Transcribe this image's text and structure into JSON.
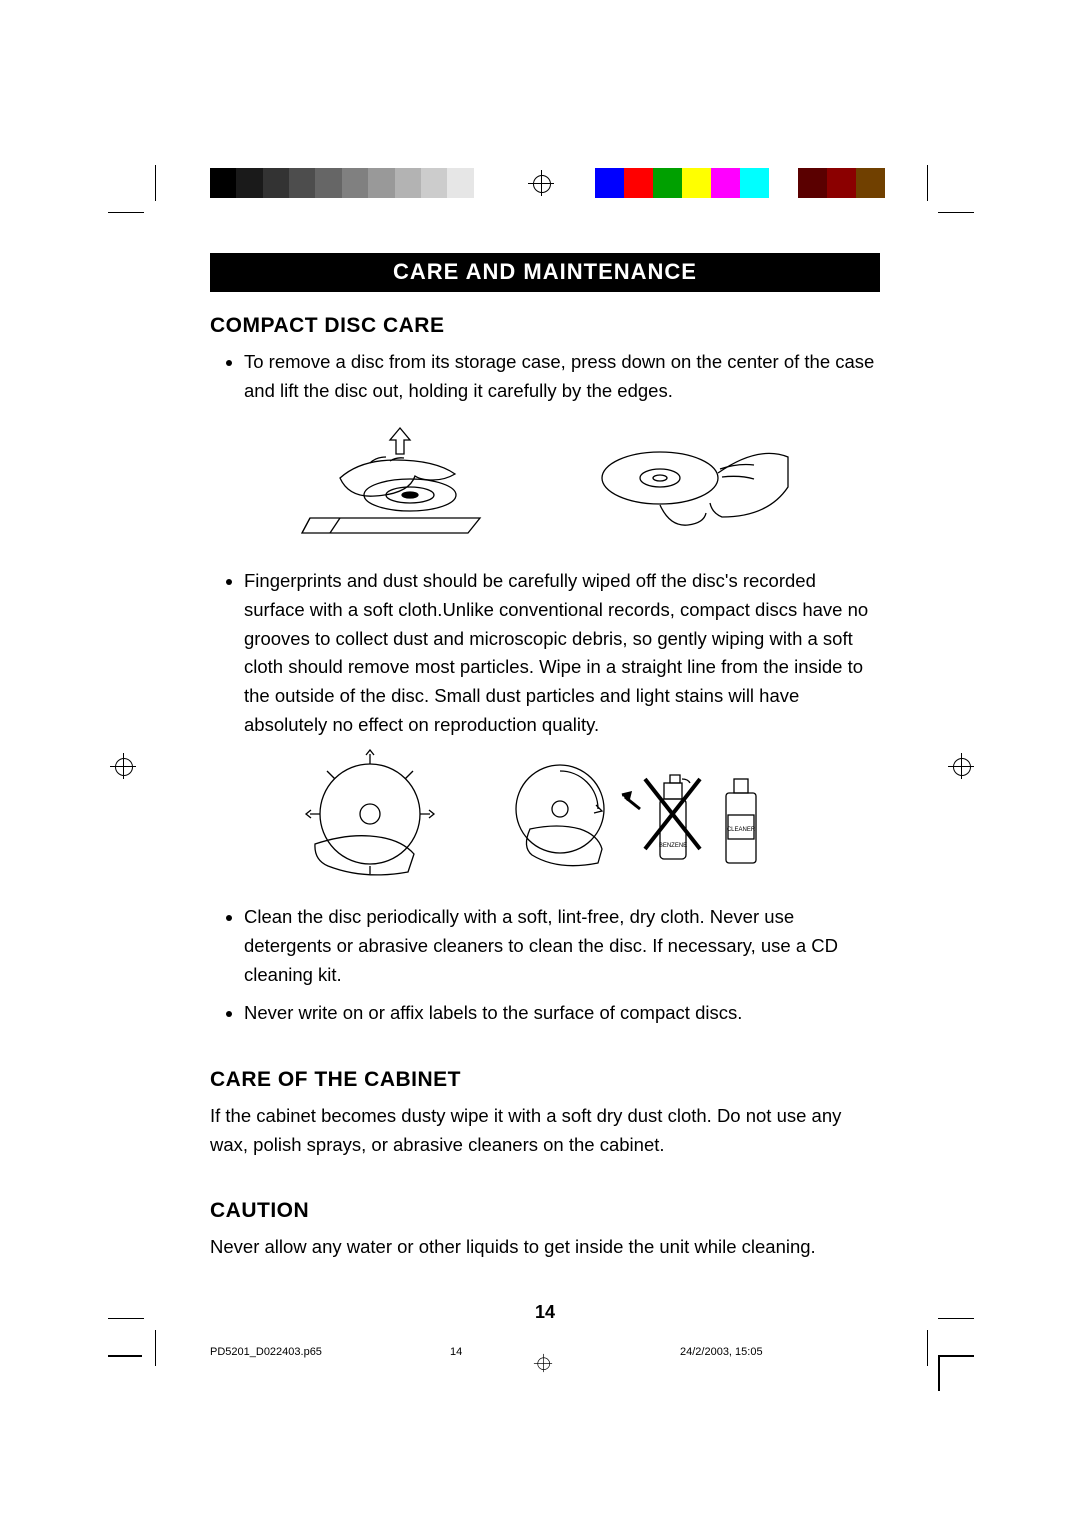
{
  "registration_bars": {
    "grayscale": [
      "#000000",
      "#1a1a1a",
      "#333333",
      "#4d4d4d",
      "#666666",
      "#808080",
      "#999999",
      "#b3b3b3",
      "#cccccc",
      "#e6e6e6",
      "#ffffff"
    ],
    "color": [
      "#0000ff",
      "#ff0000",
      "#00a000",
      "#ffff00",
      "#ff00ff",
      "#00ffff",
      "#ffffff",
      "#5a0000",
      "#8b0000",
      "#704000"
    ]
  },
  "title": "CARE AND MAINTENANCE",
  "sections": {
    "disc_care": {
      "heading": "COMPACT DISC CARE",
      "bullets": [
        "To remove a disc from its storage case, press down on the center of the case and lift the disc out, holding it carefully by the edges.",
        "Fingerprints and dust should be carefully wiped off the disc's recorded surface with a soft cloth.Unlike conventional records, compact discs have no grooves to collect dust and microscopic debris, so gently wiping with a soft cloth should remove most particles. Wipe in a straight line from the inside to the outside of the disc. Small dust particles and light stains will have absolutely no effect on reproduction quality.",
        "Clean the disc periodically with a soft, lint-free, dry cloth. Never use detergents or abrasive cleaners to clean the disc. If necessary, use a CD cleaning kit.",
        "Never write on or affix labels to the surface of compact discs."
      ]
    },
    "cabinet": {
      "heading": "CARE OF THE CABINET",
      "text": "If the cabinet becomes dusty wipe it with a soft dry dust cloth.  Do not use any wax, polish sprays, or abrasive cleaners on the cabinet."
    },
    "caution": {
      "heading": "CAUTION",
      "text": "Never allow any water or other liquids to get inside the unit while cleaning."
    }
  },
  "page_number": "14",
  "footer": {
    "filename": "PD5201_D022403.p65",
    "page": "14",
    "timestamp": "24/2/2003, 15:05"
  },
  "illustrations": {
    "cleaner_bottle_label": "CLEANER",
    "benzene_label": "BENZENE"
  }
}
